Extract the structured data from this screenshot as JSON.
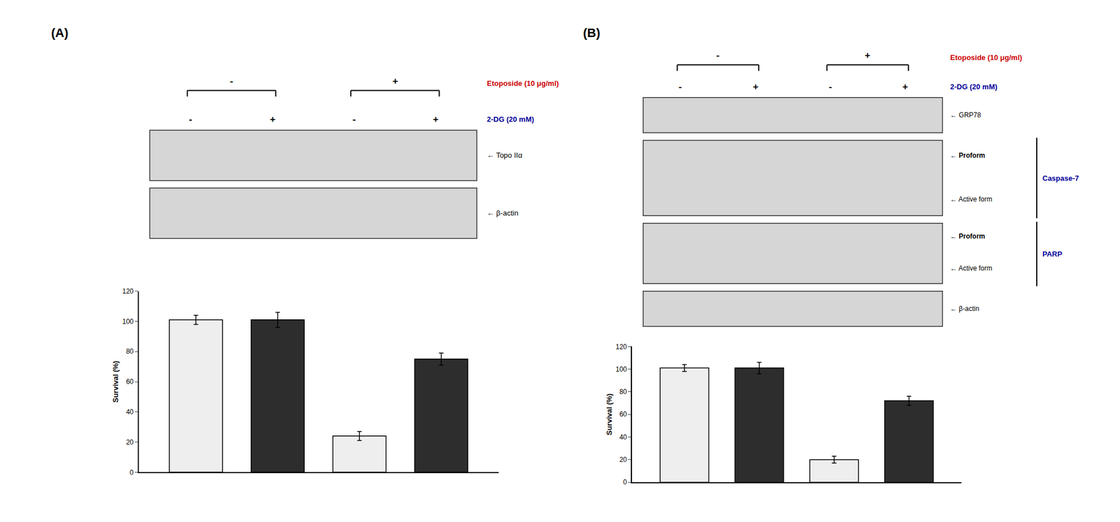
{
  "chart_data": [
    {
      "type": "bar",
      "title": "(A)",
      "categories": [
        null,
        null,
        null,
        null
      ],
      "values": [
        101,
        101,
        24,
        75
      ],
      "errors": [
        3,
        5,
        3,
        4
      ],
      "colors": [
        "#eeeeee",
        "#2d2d2d",
        "#eeeeee",
        "#2d2d2d"
      ],
      "ylabel": "Survival (%)",
      "ylim": [
        0,
        120
      ],
      "yticks": [
        0,
        20,
        40,
        60,
        80,
        100,
        120
      ],
      "grid": false,
      "tick_labels": "y",
      "annotations": [
        {
          "text": "Etoposide (10 μg/ml)",
          "color": "#cc0000"
        },
        {
          "text": "2-DG (20 mM)",
          "color": "#000099"
        },
        {
          "text": "-"
        },
        {
          "text": "+"
        },
        {
          "text": "-"
        },
        {
          "text": "+"
        },
        {
          "text": "-"
        },
        {
          "text": "+"
        },
        {
          "text": "← Topo IIα"
        },
        {
          "text": "← β-actin"
        }
      ]
    },
    {
      "type": "bar",
      "title": "(B)",
      "categories": [
        null,
        null,
        null,
        null
      ],
      "values": [
        101,
        101,
        20,
        72
      ],
      "errors": [
        3,
        5,
        3,
        4
      ],
      "colors": [
        "#eeeeee",
        "#2d2d2d",
        "#eeeeee",
        "#2d2d2d"
      ],
      "ylabel": "Survival (%)",
      "ylim": [
        0,
        120
      ],
      "yticks": [
        0,
        20,
        40,
        60,
        80,
        100,
        120
      ],
      "grid": false,
      "tick_labels": "y",
      "annotations": [
        {
          "text": "Etoposide (10 μg/ml)",
          "color": "#cc0000"
        },
        {
          "text": "2-DG (20 mM)",
          "color": "#000099"
        },
        {
          "text": "-"
        },
        {
          "text": "+"
        },
        {
          "text": "-"
        },
        {
          "text": "+"
        },
        {
          "text": "-"
        },
        {
          "text": "+"
        },
        {
          "text": "← GRP78"
        },
        {
          "text": "← Proform"
        },
        {
          "text": "← Active form"
        },
        {
          "text": "Caspase-7",
          "color": "#000099"
        },
        {
          "text": "← Proform"
        },
        {
          "text": "← Active form"
        },
        {
          "text": "PARP",
          "color": "#000099"
        },
        {
          "text": "← β-actin"
        }
      ]
    }
  ]
}
